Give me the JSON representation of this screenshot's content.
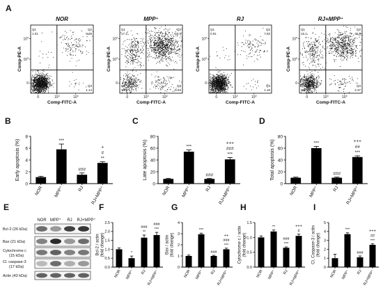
{
  "colors": {
    "bar_dark": "#000000",
    "bar_light": "#111111",
    "axis": "#000000",
    "dots": "#111111",
    "blot_bg": "#f4f4f4"
  },
  "chart_data": [
    {
      "panel": "A",
      "type": "scatter",
      "subtype": "flow-cytometry-quadrants",
      "xlabel": "Comp-FITC-A",
      "ylabel": "Comp-PE-A",
      "scale": "log",
      "plots": [
        {
          "name": "NOR",
          "q1": "Q1",
          "q1v": "1.01",
          "q2": "Q2",
          "q2v": "9.39",
          "q3": "Q3",
          "q3v": "1.14",
          "q4": "Q4",
          "q4v": "88.5"
        },
        {
          "name": "MPP⁺",
          "q1": "Q1",
          "q1v": "17.1",
          "q2": "Q2",
          "q2v": "57.8",
          "q3": "Q3",
          "q3v": "6.94",
          "q4": "Q4",
          "q4v": "18.2"
        },
        {
          "name": "RJ",
          "q1": "Q1",
          "q1v": "0.91",
          "q2": "Q2",
          "q2v": "7.82",
          "q3": "Q3",
          "q3v": "1.16",
          "q4": "Q4",
          "q4v": "90.1"
        },
        {
          "name": "RJ+MPP⁺",
          "q1": "Q1",
          "q1v": "16.1",
          "q2": "Q2",
          "q2v": "40.9",
          "q3": "Q3",
          "q3v": "4.37",
          "q4": "Q4",
          "q4v": "38.7"
        }
      ]
    },
    {
      "panel": "B",
      "type": "bar",
      "ylabel": "Early apoptosis (%)",
      "categories": [
        "NOR",
        "MPP⁺",
        "RJ",
        "RJ+MPP⁺"
      ],
      "values": [
        1.1,
        5.8,
        1.5,
        3.5
      ],
      "errors": [
        0.15,
        0.9,
        0.3,
        0.2
      ],
      "ylim": [
        0,
        8
      ],
      "ticks": [
        "0",
        "2",
        "4",
        "6",
        "8"
      ],
      "marks": [
        [],
        [
          "***"
        ],
        [
          "###"
        ],
        [
          "**",
          "#",
          "+"
        ]
      ]
    },
    {
      "panel": "C",
      "type": "bar",
      "ylabel": "Late apoptosis (%)",
      "categories": [
        "NOR",
        "MPP⁺",
        "RJ",
        "RJ+MPP⁺"
      ],
      "values": [
        8,
        54,
        8,
        41
      ],
      "errors": [
        1,
        3,
        1,
        3
      ],
      "ylim": [
        0,
        80
      ],
      "ticks": [
        "0",
        "20",
        "40",
        "60",
        "80"
      ],
      "marks": [
        [],
        [
          "***"
        ],
        [
          "###"
        ],
        [
          "***",
          "###",
          "+++"
        ]
      ]
    },
    {
      "panel": "D",
      "type": "bar",
      "ylabel": "Total apoptosis (%)",
      "categories": [
        "NOR",
        "MPP⁺",
        "RJ",
        "RJ+MPP⁺"
      ],
      "values": [
        10,
        60,
        10,
        45
      ],
      "errors": [
        1,
        3,
        1,
        2
      ],
      "ylim": [
        0,
        80
      ],
      "ticks": [
        "0",
        "20",
        "40",
        "60",
        "80"
      ],
      "marks": [
        [],
        [
          "***"
        ],
        [
          "###"
        ],
        [
          "***",
          "##",
          "+++"
        ]
      ]
    },
    {
      "panel": "E",
      "type": "table",
      "subtype": "western-blot",
      "columns": [
        "NOR",
        "MPP⁺",
        "RJ",
        "RJ+MPP⁺"
      ],
      "rows": [
        {
          "label": "Bcl-2 (26 kDa)",
          "intensity": [
            0.55,
            0.35,
            0.75,
            0.8
          ]
        },
        {
          "label": "Bax (21 kDa)",
          "intensity": [
            0.45,
            0.85,
            0.35,
            0.55
          ]
        },
        {
          "label": "Cytochrome c",
          "label2": "(15 kDa)",
          "intensity": [
            0.5,
            0.6,
            0.45,
            0.5
          ]
        },
        {
          "label": "Cl. caspase-3",
          "label2": "(17 kDa)",
          "intensity": [
            0.2,
            0.55,
            0.25,
            0.35
          ]
        },
        {
          "label": "Actin (43 kDa)",
          "intensity": [
            0.6,
            0.6,
            0.6,
            0.6
          ]
        }
      ]
    },
    {
      "panel": "F",
      "type": "bar",
      "ylabel": "Bcl-2 / actin",
      "ylabel2": "(fold change)",
      "categories": [
        "NOR",
        "MPP⁺",
        "RJ",
        "RJ+MPP⁺"
      ],
      "values": [
        1.0,
        0.5,
        1.65,
        1.8
      ],
      "errors": [
        0.08,
        0.12,
        0.15,
        0.15
      ],
      "ylim": [
        0,
        2.5
      ],
      "ticks": [
        "0.0",
        "0.5",
        "1.0",
        "1.5",
        "2.0",
        "2.5"
      ],
      "marks": [
        [],
        [
          "*"
        ],
        [
          "**",
          "###"
        ],
        [
          "***",
          "###"
        ]
      ]
    },
    {
      "panel": "G",
      "type": "bar",
      "ylabel": "Bax / actin",
      "ylabel2": "(fold change)",
      "categories": [
        "NOR",
        "MPP⁺",
        "RJ",
        "RJ+MPP⁺"
      ],
      "values": [
        1.0,
        2.95,
        1.0,
        1.6
      ],
      "errors": [
        0.08,
        0.1,
        0.06,
        0.1
      ],
      "ylim": [
        0,
        4
      ],
      "ticks": [
        "0",
        "1",
        "2",
        "3",
        "4"
      ],
      "marks": [
        [],
        [
          "***"
        ],
        [
          "###"
        ],
        [
          "***",
          "###",
          "++"
        ]
      ]
    },
    {
      "panel": "H",
      "type": "bar",
      "ylabel": "Cytochrome c / actin",
      "ylabel2": "(fold change)",
      "categories": [
        "NOR",
        "MPP⁺",
        "RJ",
        "RJ+MPP⁺"
      ],
      "values": [
        1.0,
        1.2,
        0.65,
        1.05
      ],
      "errors": [
        0.05,
        0.05,
        0.03,
        0.06
      ],
      "ylim": [
        0,
        1.5
      ],
      "ticks": [
        "0.0",
        "0.5",
        "1.0",
        "1.5"
      ],
      "marks": [
        [],
        [
          "**"
        ],
        [
          "***",
          "###"
        ],
        [
          "#",
          "+++"
        ]
      ]
    },
    {
      "panel": "I",
      "type": "bar",
      "ylabel": "Cl. Caspase-3 / actin",
      "ylabel2": "(fold change)",
      "categories": [
        "NOR",
        "MPP⁺",
        "RJ",
        "RJ+MPP⁺"
      ],
      "values": [
        1.0,
        3.7,
        1.1,
        2.5
      ],
      "errors": [
        0.45,
        0.15,
        0.15,
        0.12
      ],
      "ylim": [
        0,
        5
      ],
      "ticks": [
        "0",
        "1",
        "2",
        "3",
        "4",
        "5"
      ],
      "marks": [
        [],
        [
          "***"
        ],
        [
          "###"
        ],
        [
          "***",
          "##",
          "+++"
        ]
      ]
    }
  ]
}
